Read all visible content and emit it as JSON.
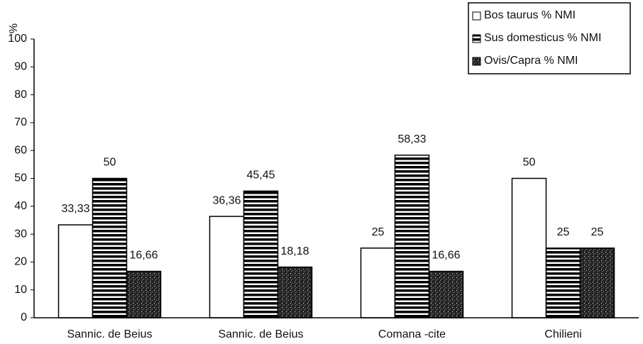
{
  "chart_data": {
    "type": "bar",
    "y_label": "%",
    "categories": [
      "Sannic. de Beius",
      "Sannic. de Beius",
      "Comana -cite",
      "Chilieni"
    ],
    "series": [
      {
        "name": "Bos taurus % NMI",
        "color": "#ffffff",
        "pattern": "solid",
        "values": [
          33.33,
          36.36,
          25,
          50
        ],
        "value_labels": [
          "33,33",
          "36,36",
          "25",
          "50"
        ]
      },
      {
        "name": "Sus domesticus % NMI",
        "color": "#000000",
        "pattern": "horizontal-stripes",
        "values": [
          50,
          45.45,
          58.33,
          25
        ],
        "value_labels": [
          "50",
          "45,45",
          "58,33",
          "25"
        ]
      },
      {
        "name": "Ovis/Capra % NMI",
        "color": "#222222",
        "pattern": "stipple",
        "values": [
          16.66,
          18.18,
          16.66,
          25
        ],
        "value_labels": [
          "16,66",
          "18,18",
          "16,66",
          "25"
        ]
      }
    ],
    "ylim": [
      0,
      100
    ],
    "yticks": [
      0,
      10,
      20,
      30,
      40,
      50,
      60,
      70,
      80,
      90,
      100
    ],
    "grid": false,
    "legend": "top-right"
  }
}
